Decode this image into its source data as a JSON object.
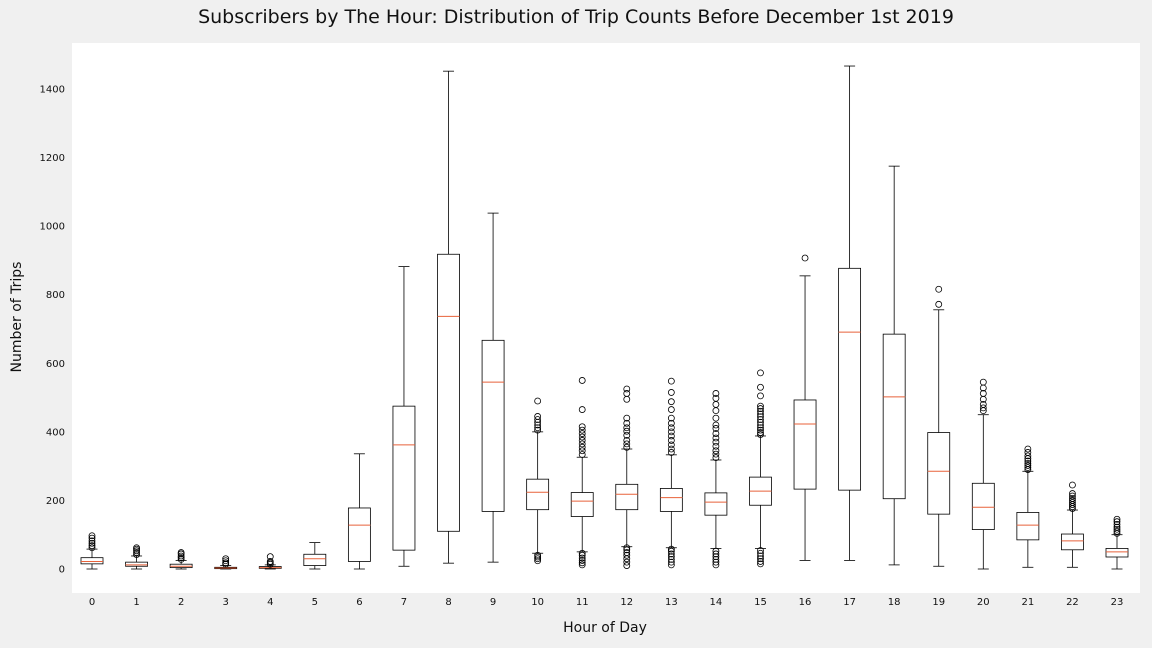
{
  "chart_data": {
    "type": "box",
    "title": "Subscribers by The Hour: Distribution of Trip Counts Before December 1st 2019",
    "xlabel": "Hour of Day",
    "ylabel": "Number of Trips",
    "ylim": [
      -65,
      1500
    ],
    "y_ticks": [
      0,
      200,
      400,
      600,
      800,
      1000,
      1200,
      1400
    ],
    "grid": false,
    "categories": [
      "0",
      "1",
      "2",
      "3",
      "4",
      "5",
      "6",
      "7",
      "8",
      "9",
      "10",
      "11",
      "12",
      "13",
      "14",
      "15",
      "16",
      "17",
      "18",
      "19",
      "20",
      "21",
      "22",
      "23"
    ],
    "colors": {
      "box": "#000000",
      "median": "#e8623a",
      "plot_bg": "#ffffff",
      "figure_bg": "#f0f0f0"
    },
    "boxes": [
      {
        "whislo": 0,
        "q1": 15,
        "med": 22,
        "q3": 33,
        "whishi": 58,
        "fliers": [
          62,
          68,
          75,
          82,
          90,
          97
        ]
      },
      {
        "whislo": 0,
        "q1": 8,
        "med": 12,
        "q3": 20,
        "whishi": 38,
        "fliers": [
          42,
          48,
          53,
          58,
          62
        ]
      },
      {
        "whislo": 0,
        "q1": 4,
        "med": 8,
        "q3": 14,
        "whishi": 25,
        "fliers": [
          28,
          33,
          38,
          44,
          48
        ]
      },
      {
        "whislo": 0,
        "q1": 1,
        "med": 3,
        "q3": 5,
        "whishi": 10,
        "fliers": [
          14,
          18,
          24,
          30
        ]
      },
      {
        "whislo": 0,
        "q1": 2,
        "med": 4,
        "q3": 7,
        "whishi": 12,
        "fliers": [
          14,
          18,
          22,
          36
        ]
      },
      {
        "whislo": 0,
        "q1": 10,
        "med": 30,
        "q3": 43,
        "whishi": 77,
        "fliers": []
      },
      {
        "whislo": 0,
        "q1": 22,
        "med": 128,
        "q3": 178,
        "whishi": 336,
        "fliers": []
      },
      {
        "whislo": 8,
        "q1": 55,
        "med": 362,
        "q3": 475,
        "whishi": 882,
        "fliers": []
      },
      {
        "whislo": 17,
        "q1": 110,
        "med": 737,
        "q3": 918,
        "whishi": 1452,
        "fliers": []
      },
      {
        "whislo": 20,
        "q1": 168,
        "med": 545,
        "q3": 667,
        "whishi": 1038,
        "fliers": []
      },
      {
        "whislo": 46,
        "q1": 173,
        "med": 224,
        "q3": 262,
        "whishi": 400,
        "fliers": [
          24,
          30,
          35,
          40,
          405,
          412,
          420,
          428,
          436,
          445,
          490
        ]
      },
      {
        "whislo": 50,
        "q1": 153,
        "med": 198,
        "q3": 223,
        "whishi": 326,
        "fliers": [
          12,
          18,
          25,
          32,
          40,
          46,
          334,
          345,
          355,
          365,
          375,
          385,
          395,
          405,
          415,
          465,
          550
        ]
      },
      {
        "whislo": 65,
        "q1": 173,
        "med": 218,
        "q3": 247,
        "whishi": 350,
        "fliers": [
          10,
          20,
          30,
          40,
          48,
          56,
          62,
          355,
          365,
          375,
          390,
          402,
          412,
          425,
          440,
          495,
          512,
          525
        ]
      },
      {
        "whislo": 62,
        "q1": 168,
        "med": 208,
        "q3": 235,
        "whishi": 333,
        "fliers": [
          12,
          20,
          28,
          36,
          44,
          52,
          58,
          340,
          350,
          362,
          375,
          388,
          400,
          412,
          425,
          440,
          465,
          488,
          515,
          548
        ]
      },
      {
        "whislo": 60,
        "q1": 157,
        "med": 195,
        "q3": 222,
        "whishi": 318,
        "fliers": [
          12,
          20,
          28,
          36,
          44,
          52,
          325,
          335,
          345,
          358,
          370,
          382,
          395,
          410,
          420,
          440,
          462,
          480,
          498,
          512
        ]
      },
      {
        "whislo": 60,
        "q1": 186,
        "med": 227,
        "q3": 268,
        "whishi": 388,
        "fliers": [
          15,
          22,
          30,
          38,
          46,
          54,
          392,
          398,
          405,
          412,
          420,
          428,
          436,
          444,
          452,
          460,
          468,
          475,
          505,
          530,
          572
        ]
      },
      {
        "whislo": 25,
        "q1": 233,
        "med": 423,
        "q3": 493,
        "whishi": 855,
        "fliers": [
          907
        ]
      },
      {
        "whislo": 25,
        "q1": 230,
        "med": 691,
        "q3": 877,
        "whishi": 1467,
        "fliers": []
      },
      {
        "whislo": 12,
        "q1": 205,
        "med": 502,
        "q3": 685,
        "whishi": 1175,
        "fliers": []
      },
      {
        "whislo": 8,
        "q1": 160,
        "med": 285,
        "q3": 398,
        "whishi": 756,
        "fliers": [
          772,
          816
        ]
      },
      {
        "whislo": 0,
        "q1": 115,
        "med": 180,
        "q3": 250,
        "whishi": 450,
        "fliers": [
          462,
          470,
          480,
          495,
          512,
          528,
          545
        ]
      },
      {
        "whislo": 5,
        "q1": 85,
        "med": 128,
        "q3": 165,
        "whishi": 285,
        "fliers": [
          290,
          296,
          302,
          308,
          315,
          322,
          330,
          340,
          350
        ]
      },
      {
        "whislo": 5,
        "q1": 56,
        "med": 82,
        "q3": 102,
        "whishi": 172,
        "fliers": [
          176,
          182,
          188,
          194,
          200,
          206,
          213,
          220,
          245
        ]
      },
      {
        "whislo": 0,
        "q1": 35,
        "med": 50,
        "q3": 60,
        "whishi": 100,
        "fliers": [
          104,
          110,
          116,
          122,
          130,
          138,
          145
        ]
      }
    ]
  }
}
